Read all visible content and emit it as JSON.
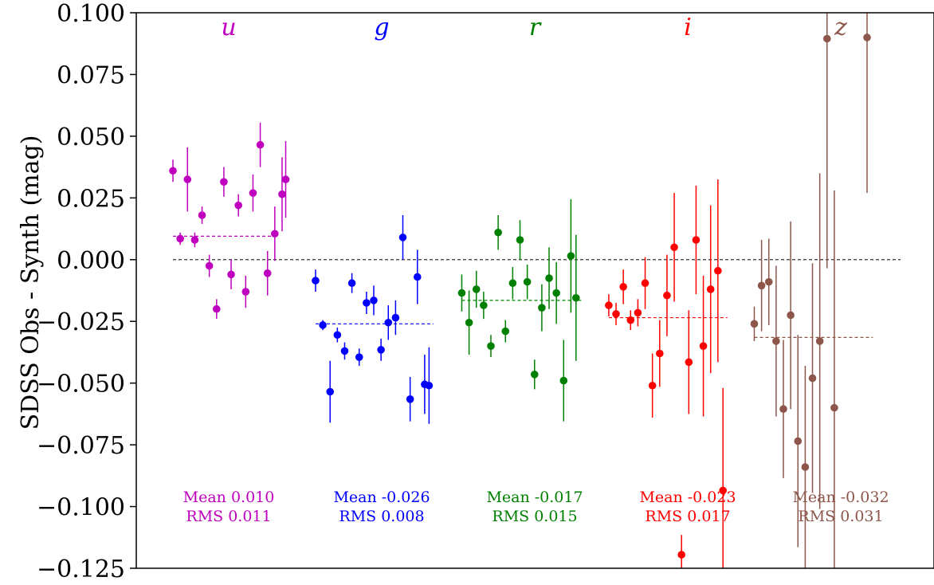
{
  "chart_data": {
    "type": "scatter",
    "ylabel": "SDSS Obs - Synth (mag)",
    "xlabel": "",
    "ylim": [
      -0.125,
      0.1
    ],
    "yticks": [
      "0.100",
      "0.075",
      "0.050",
      "0.025",
      "0.000",
      "−0.025",
      "−0.050",
      "−0.075",
      "−0.100",
      "−0.125"
    ],
    "ytick_values": [
      0.1,
      0.075,
      0.05,
      0.025,
      0.0,
      -0.025,
      -0.05,
      -0.075,
      -0.1,
      -0.125
    ],
    "xlim": [
      0,
      100
    ],
    "zero_line": 0.0,
    "series": [
      {
        "name": "u",
        "color": "#bf00bf",
        "mean_label": "Mean 0.010",
        "rms_label": "RMS 0.011",
        "mean": 0.0095,
        "mean_x": [
          0,
          14.2
        ],
        "x": [
          0,
          1,
          2,
          3,
          4,
          5,
          6,
          7,
          8,
          9,
          10,
          11,
          12,
          13,
          14,
          15
        ],
        "y": [
          0.036,
          0.0085,
          0.0325,
          0.008,
          0.018,
          -0.0025,
          -0.02,
          0.0315,
          -0.006,
          0.022,
          -0.013,
          0.027,
          0.0465,
          -0.0055,
          0.0105,
          0.0265
        ],
        "err": [
          0.0045,
          0.0025,
          0.013,
          0.003,
          0.0035,
          0.0045,
          0.004,
          0.006,
          0.006,
          0.0045,
          0.0065,
          0.0075,
          0.009,
          0.009,
          0.011,
          0.015
        ],
        "extra": {
          "x": 15.5,
          "y": 0.0325,
          "err": 0.0155
        }
      },
      {
        "name": "g",
        "color": "#0000ff",
        "mean_label": "Mean -0.026",
        "rms_label": "RMS 0.008",
        "mean": -0.026,
        "mean_x": [
          19.6,
          35.8
        ],
        "x": [
          19.6,
          20.6,
          21.6,
          22.6,
          23.6,
          24.6,
          25.6,
          26.6,
          27.6,
          28.6,
          29.6,
          30.6,
          31.6,
          32.6,
          33.6,
          34.6
        ],
        "y": [
          -0.0085,
          -0.0265,
          -0.0535,
          -0.0305,
          -0.037,
          -0.0095,
          -0.0395,
          -0.0175,
          -0.0165,
          -0.0365,
          -0.0255,
          -0.0235,
          0.009,
          -0.0565,
          -0.007,
          -0.0505
        ],
        "err": [
          0.0045,
          0.002,
          0.0125,
          0.003,
          0.0035,
          0.004,
          0.0035,
          0.0045,
          0.006,
          0.0045,
          0.007,
          0.007,
          0.009,
          0.009,
          0.011,
          0.012
        ],
        "extra": {
          "x": 35.2,
          "y": -0.051,
          "err": 0.0155
        }
      },
      {
        "name": "r",
        "color": "#008000",
        "mean_label": "Mean -0.017",
        "rms_label": "RMS 0.015",
        "mean": -0.0165,
        "mean_x": [
          39.7,
          56.1
        ],
        "x": [
          39.7,
          40.7,
          41.7,
          42.7,
          43.7,
          44.7,
          45.7,
          46.7,
          47.7,
          48.7,
          49.7,
          50.7,
          51.7,
          52.7,
          53.7,
          54.7
        ],
        "y": [
          -0.0135,
          -0.0255,
          -0.012,
          -0.0185,
          -0.035,
          0.011,
          -0.029,
          -0.0095,
          0.008,
          -0.009,
          -0.0465,
          -0.0195,
          -0.0075,
          -0.0135,
          -0.049,
          0.0015
        ],
        "err": [
          0.0075,
          0.013,
          0.0075,
          0.0055,
          0.0045,
          0.007,
          0.0045,
          0.0065,
          0.008,
          0.007,
          0.006,
          0.0095,
          0.0125,
          0.0125,
          0.0165,
          0.023
        ],
        "extra": {
          "x": 55.4,
          "y": -0.0155,
          "err": 0.0255
        }
      },
      {
        "name": "i",
        "color": "#ff0000",
        "mean_label": "Mean -0.023",
        "rms_label": "RMS 0.017",
        "mean": -0.0235,
        "mean_x": [
          59.9,
          76.2
        ],
        "x": [
          59.9,
          60.9,
          61.9,
          62.9,
          63.9,
          64.9,
          65.9,
          66.9,
          67.9,
          68.9,
          69.9,
          70.9,
          71.9,
          72.9,
          73.9,
          74.9
        ],
        "y": [
          -0.0185,
          -0.022,
          -0.011,
          -0.0245,
          -0.0215,
          -0.0095,
          -0.051,
          -0.038,
          -0.0145,
          0.005,
          -0.1195,
          -0.0415,
          0.008,
          -0.035,
          -0.012,
          -0.0045
        ],
        "err": [
          0.0045,
          0.0045,
          0.007,
          0.004,
          0.0055,
          0.0105,
          0.013,
          0.0135,
          0.0165,
          0.022,
          0.008,
          0.021,
          0.022,
          0.0285,
          0.034,
          0.037
        ],
        "extra": {
          "x": 75.6,
          "y": -0.0935,
          "err": 0.0415
        }
      },
      {
        "name": "z",
        "color": "#8c564b",
        "mean_label": "Mean -0.032",
        "rms_label": "RMS 0.031",
        "mean": -0.0315,
        "mean_x": [
          79.9,
          96.2
        ],
        "x": [
          79.9,
          80.9,
          81.9,
          82.9,
          83.9,
          84.9,
          85.9,
          86.9,
          87.9,
          88.9,
          89.9,
          90.9,
          91.9,
          92.9,
          93.9,
          94.9
        ],
        "y": [
          -0.026,
          -0.0105,
          -0.009,
          -0.033,
          -0.0605,
          -0.0225,
          -0.0735,
          -0.084,
          -0.048,
          -0.033,
          0.0895,
          -0.06,
          -0.0595,
          -0.0595,
          -0.0595,
          -0.0595
        ],
        "err": [
          0.007,
          0.0185,
          0.0175,
          0.0305,
          0.028,
          0.038,
          0.043,
          0.041,
          0.0465,
          0.068,
          0.093,
          0.088,
          0,
          0,
          0,
          0
        ],
        "count": 12,
        "extra": {
          "x": 95.4,
          "y": 0.09,
          "err": 0.063
        }
      }
    ]
  }
}
